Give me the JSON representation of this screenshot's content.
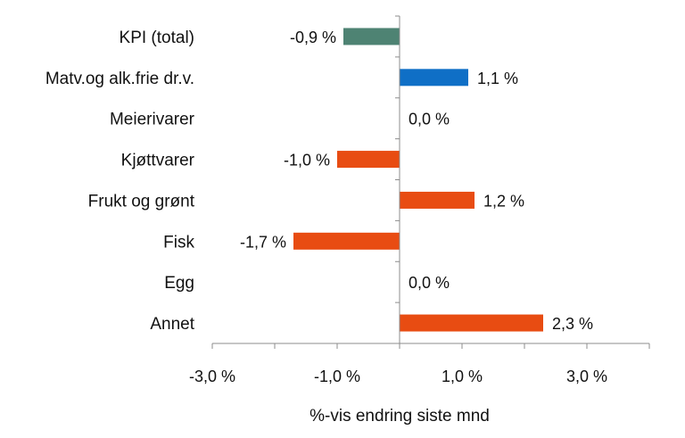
{
  "chart_data": {
    "type": "bar",
    "orientation": "horizontal",
    "title": "",
    "xlabel": "%-vis endring siste mnd",
    "ylabel": "",
    "xlim": [
      -3,
      4
    ],
    "x_ticks": [
      -3,
      -1,
      1,
      3
    ],
    "x_tick_labels": [
      "-3,0 %",
      "-1,0 %",
      "1,0 %",
      "3,0 %"
    ],
    "categories": [
      "KPI (total)",
      "Matv.og alk.frie dr.v.",
      "Meierivarer",
      "Kjøttvarer",
      "Frukt og grønt",
      "Fisk",
      "Egg",
      "Annet"
    ],
    "values": [
      -0.9,
      1.1,
      0.0,
      -1.0,
      1.2,
      -1.7,
      0.0,
      2.3
    ],
    "data_labels": [
      "-0,9 %",
      "1,1 %",
      "0,0 %",
      "-1,0 %",
      "1,2 %",
      "-1,7 %",
      "0,0 %",
      "2,3 %"
    ],
    "bar_colors": [
      "#4E8373",
      "#0F6FC6",
      "#E84C12",
      "#E84C12",
      "#E84C12",
      "#E84C12",
      "#E84C12",
      "#E84C12"
    ],
    "grid": false,
    "legend": "none"
  }
}
